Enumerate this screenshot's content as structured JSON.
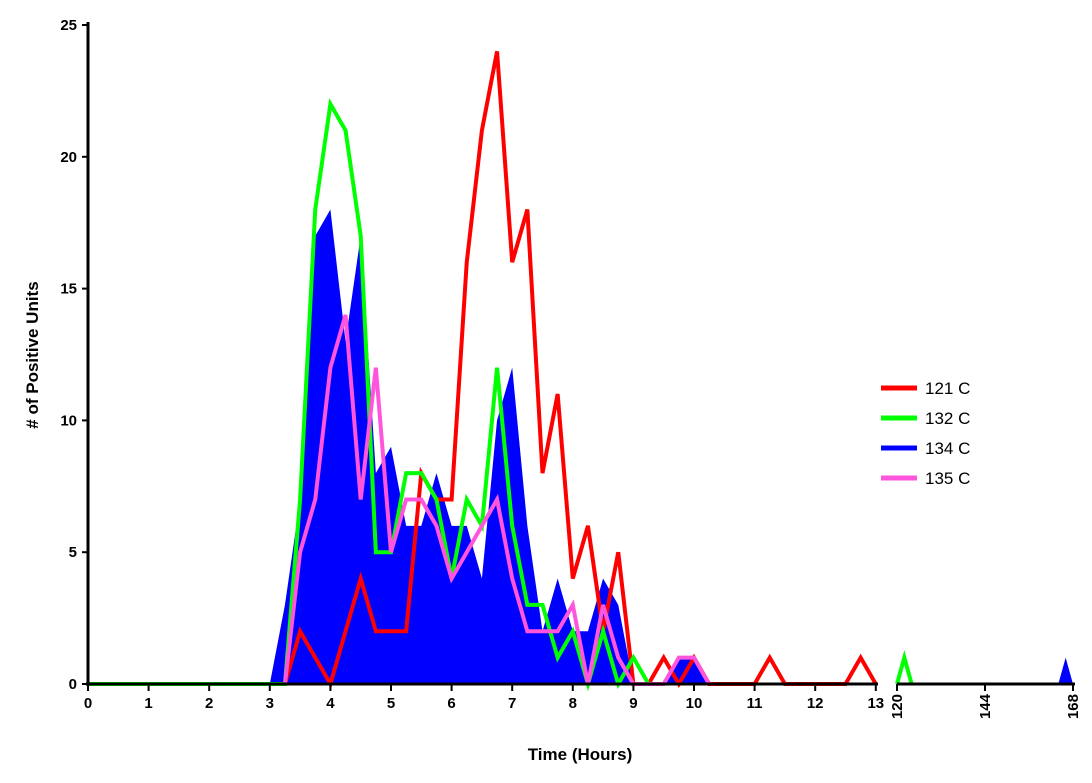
{
  "chart_data": {
    "type": "line",
    "title": "",
    "xlabel": "Time (Hours)",
    "ylabel": "# of Positive Units",
    "ylim": [
      0,
      25
    ],
    "yticks": [
      0,
      5,
      10,
      15,
      20,
      25
    ],
    "xticks_segment1": [
      0,
      1,
      2,
      3,
      4,
      5,
      6,
      7,
      8,
      9,
      10,
      11,
      12,
      13
    ],
    "xticks_segment2": [
      120,
      144,
      168
    ],
    "x_axis_break": [
      13,
      120
    ],
    "grid": false,
    "legend_placement": "right",
    "series": [
      {
        "name": "121 C",
        "color": "#ff0000",
        "style": "line",
        "x": [
          0,
          3.25,
          3.5,
          3.75,
          4,
          4.25,
          4.5,
          4.75,
          5,
          5.25,
          5.5,
          5.75,
          6,
          6.25,
          6.5,
          6.75,
          7,
          7.25,
          7.5,
          7.75,
          8,
          8.25,
          8.5,
          8.75,
          9,
          9.25,
          9.5,
          9.75,
          10,
          10.25,
          11,
          11.25,
          11.5,
          12.5,
          12.75,
          13
        ],
        "y": [
          0,
          0,
          2,
          1,
          0,
          2,
          4,
          2,
          2,
          2,
          8,
          7,
          7,
          16,
          21,
          24,
          16,
          18,
          8,
          11,
          4,
          6,
          2,
          5,
          0,
          0,
          1,
          0,
          1,
          0,
          0,
          1,
          0,
          0,
          1,
          0
        ]
      },
      {
        "name": "132 C",
        "color": "#00ff00",
        "style": "line",
        "x": [
          0,
          3.25,
          3.5,
          3.75,
          4,
          4.25,
          4.5,
          4.75,
          5,
          5.25,
          5.5,
          5.75,
          6,
          6.25,
          6.5,
          6.75,
          7,
          7.25,
          7.5,
          7.75,
          8,
          8.25,
          8.5,
          8.75,
          9,
          9.25,
          120,
          122,
          124
        ],
        "y": [
          0,
          0,
          7,
          18,
          22,
          21,
          17,
          5,
          5,
          8,
          8,
          7,
          4,
          7,
          6,
          12,
          6,
          3,
          3,
          1,
          2,
          0,
          2,
          0,
          1,
          0,
          0,
          1,
          0
        ]
      },
      {
        "name": "134 C",
        "color": "#0000ff",
        "style": "area",
        "x": [
          0,
          3,
          3.25,
          3.5,
          3.75,
          4,
          4.25,
          4.5,
          4.75,
          5,
          5.25,
          5.5,
          5.75,
          6,
          6.25,
          6.5,
          6.75,
          7,
          7.25,
          7.5,
          7.75,
          8,
          8.25,
          8.5,
          8.75,
          9,
          9.5,
          9.75,
          10,
          10.25,
          13,
          120,
          164,
          166,
          168
        ],
        "y": [
          0,
          0,
          3,
          7,
          17,
          18,
          13,
          17,
          8,
          9,
          6,
          6,
          8,
          6,
          6,
          4,
          10,
          12,
          6,
          2,
          4,
          2,
          2,
          4,
          3,
          0,
          0,
          1,
          1,
          0,
          0,
          0,
          0,
          1,
          0
        ]
      },
      {
        "name": "135 C",
        "color": "#ff55dd",
        "style": "line",
        "x": [
          3.25,
          3.5,
          3.75,
          4,
          4.25,
          4.5,
          4.75,
          5,
          5.25,
          5.5,
          5.75,
          6,
          6.25,
          6.5,
          6.75,
          7,
          7.25,
          7.5,
          7.75,
          8,
          8.25,
          8.5,
          8.75,
          9,
          9.5,
          9.75,
          10,
          10.25
        ],
        "y": [
          0,
          5,
          7,
          12,
          14,
          7,
          12,
          5,
          7,
          7,
          6,
          4,
          5,
          6,
          7,
          4,
          2,
          2,
          2,
          3,
          0,
          3,
          1,
          0,
          0,
          1,
          1,
          0
        ]
      }
    ]
  }
}
